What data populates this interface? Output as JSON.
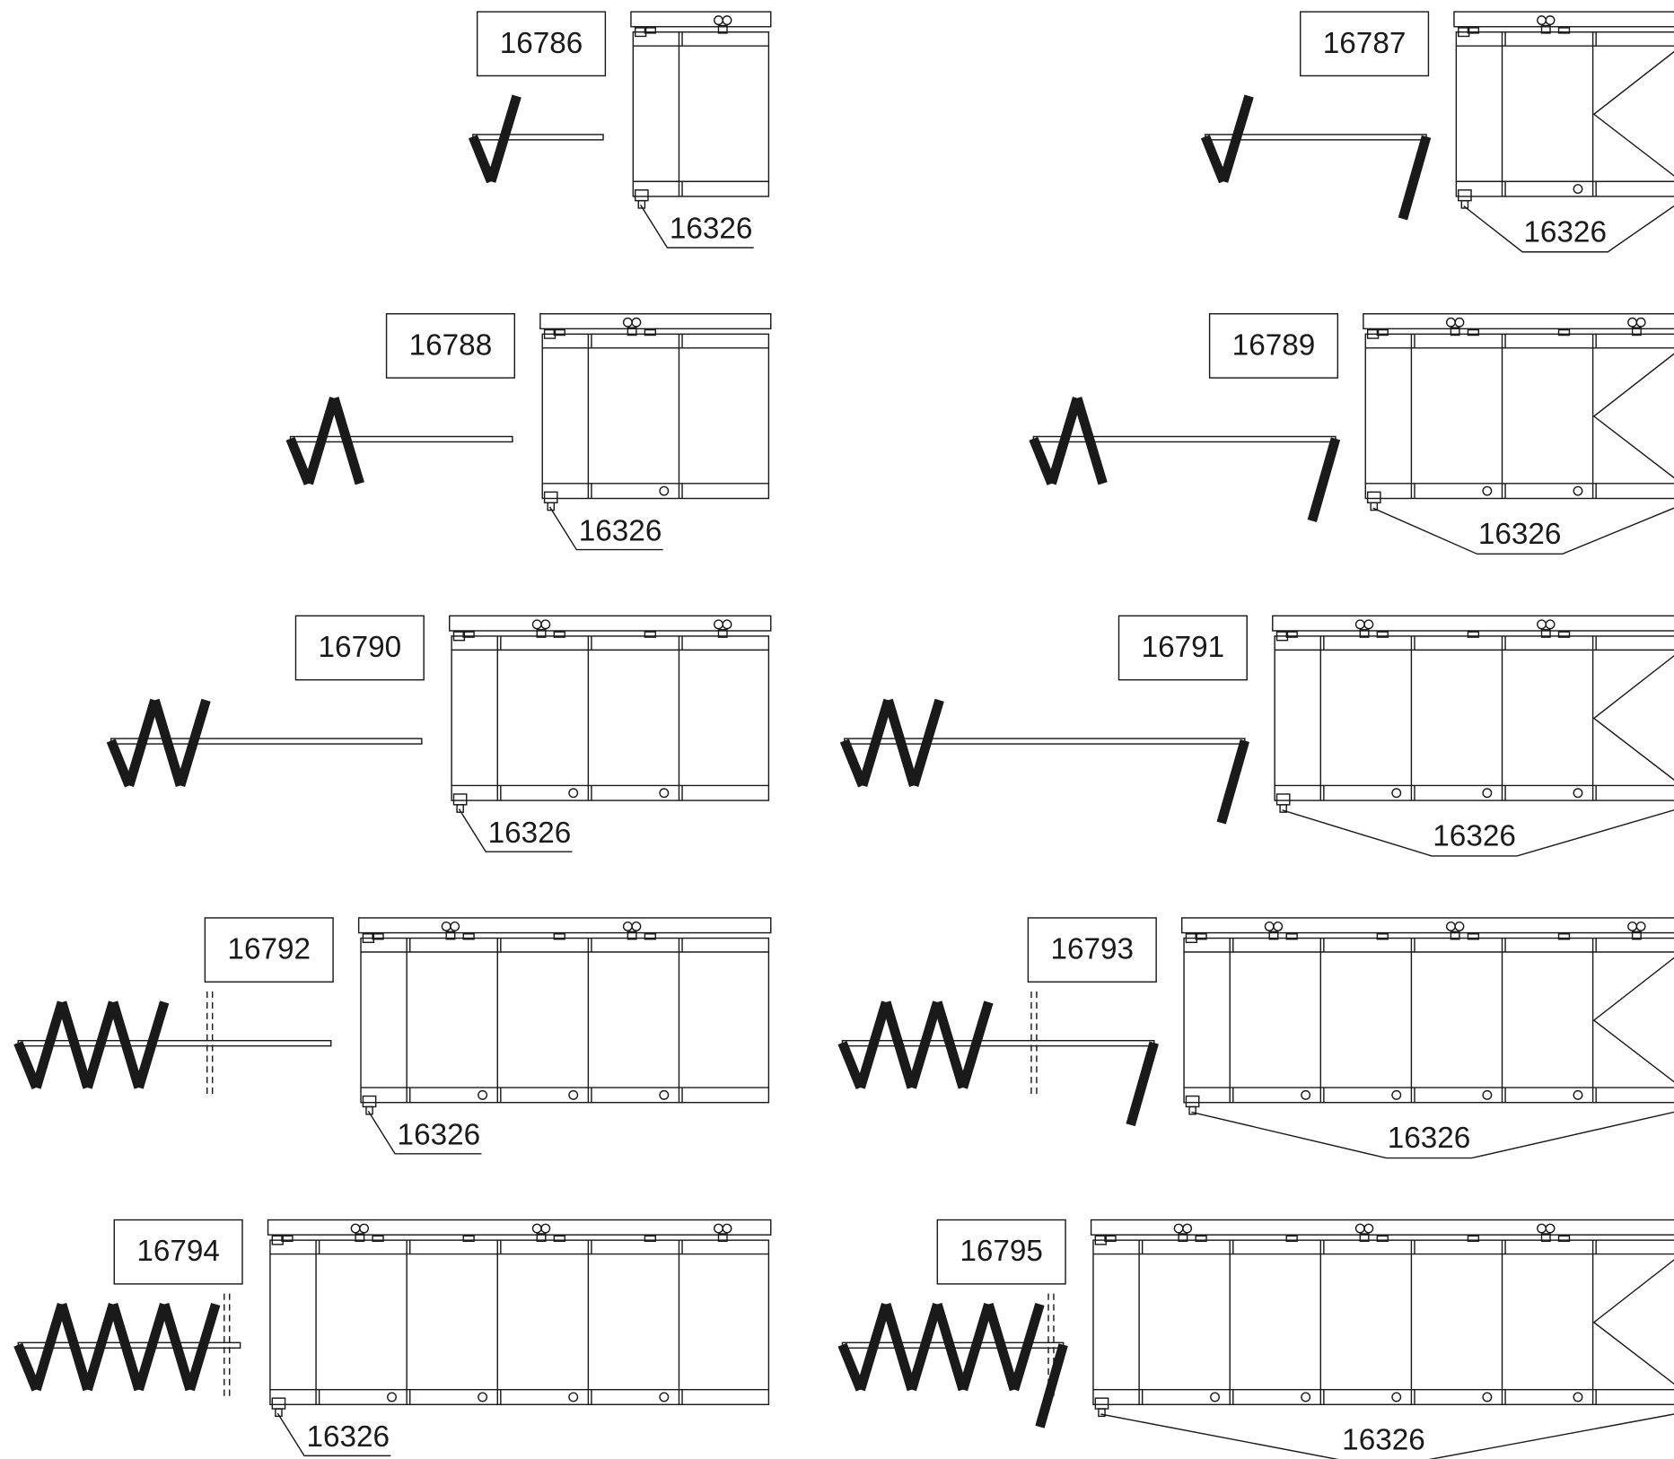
{
  "items": [
    {
      "part_number": "16786",
      "callout": "16326"
    },
    {
      "part_number": "16787",
      "callout": "16326"
    },
    {
      "part_number": "16788",
      "callout": "16326"
    },
    {
      "part_number": "16789",
      "callout": "16326"
    },
    {
      "part_number": "16790",
      "callout": "16326"
    },
    {
      "part_number": "16791",
      "callout": "16326"
    },
    {
      "part_number": "16792",
      "callout": "16326"
    },
    {
      "part_number": "16793",
      "callout": "16326"
    },
    {
      "part_number": "16794",
      "callout": "16326"
    },
    {
      "part_number": "16795",
      "callout": "16326"
    }
  ]
}
